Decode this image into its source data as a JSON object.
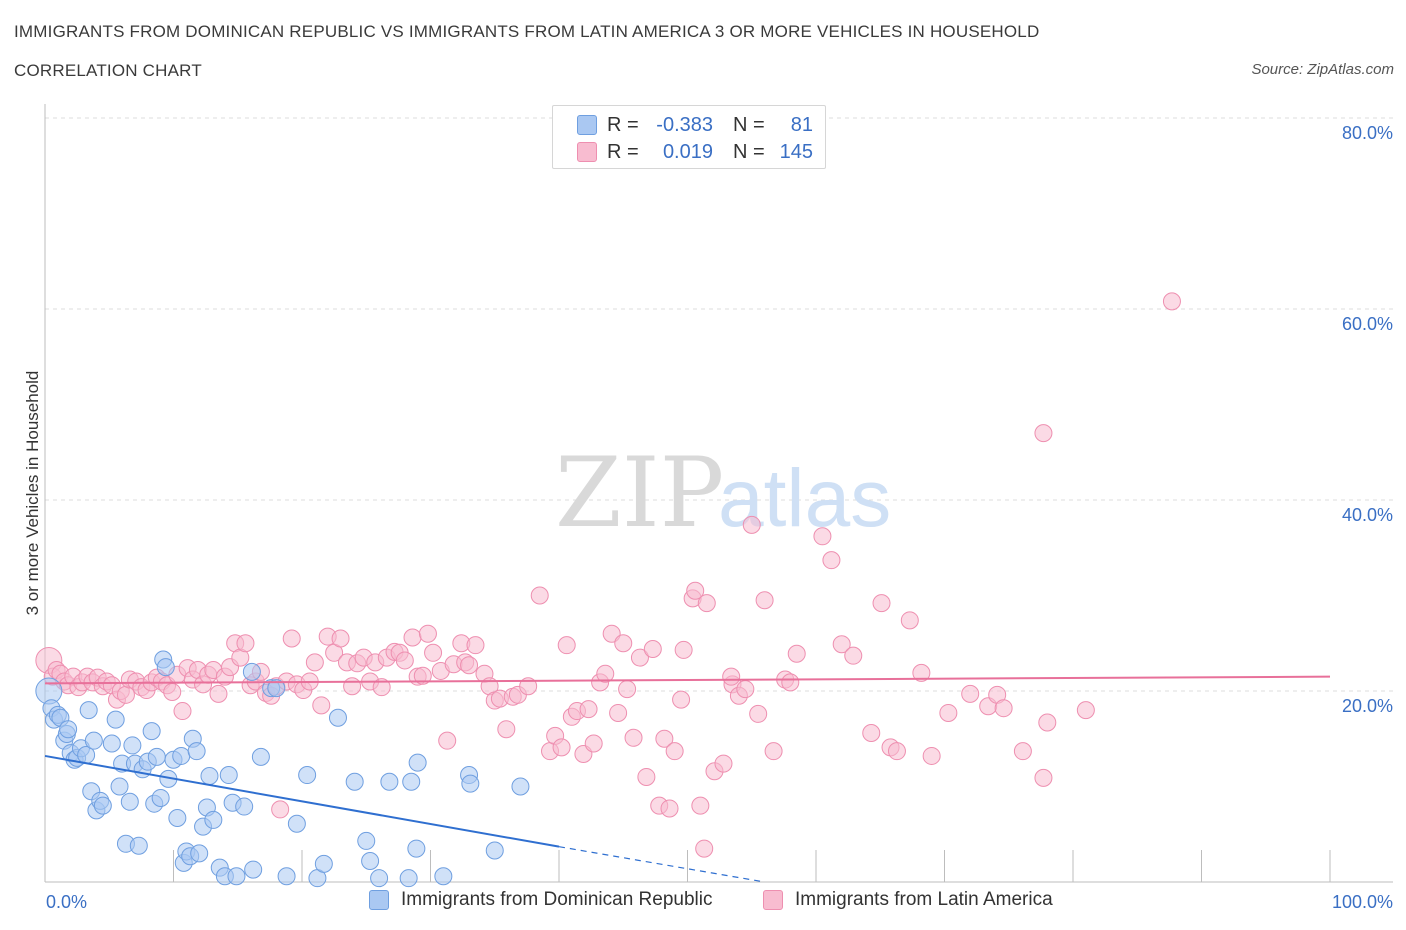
{
  "header": {
    "title": "IMMIGRANTS FROM DOMINICAN REPUBLIC VS IMMIGRANTS FROM LATIN AMERICA 3 OR MORE VEHICLES IN HOUSEHOLD",
    "subtitle": "CORRELATION CHART",
    "source": "Source: ZipAtlas.com"
  },
  "legend": {
    "rows": [
      {
        "r_label": "R =",
        "r_value": "-0.383",
        "n_label": "N =",
        "n_value": "81"
      },
      {
        "r_label": "R =",
        "r_value": "0.019",
        "n_label": "N =",
        "n_value": "145"
      }
    ]
  },
  "colors": {
    "blue_fill": "#aac8f2",
    "blue_stroke": "#6f9fe0",
    "blue_line": "#2f6fd0",
    "pink_fill": "#f8bcd0",
    "pink_stroke": "#ee8fb0",
    "pink_line": "#e8709a",
    "axis_label": "#3a6fc4",
    "grid": "#dcdcdc"
  },
  "chart_data": {
    "type": "scatter",
    "ylabel": "3 or more Vehicles in Household",
    "xlim": [
      0,
      100
    ],
    "ylim": [
      0,
      80
    ],
    "x_tick_labels": [
      "0.0%",
      "100.0%"
    ],
    "y_ticks": [
      20,
      40,
      60,
      80
    ],
    "y_tick_labels": [
      "20.0%",
      "40.0%",
      "60.0%",
      "80.0%"
    ],
    "grid": true,
    "watermark": {
      "zip": "ZIP",
      "atlas": "atlas"
    },
    "series": [
      {
        "name": "Immigrants from Dominican Republic",
        "color": "blue",
        "trend": {
          "x0": 0,
          "y0": 13.2,
          "x1": 40,
          "y1": 3.7,
          "dash_to_x": 56,
          "dash_to_y": 0
        },
        "points": [
          [
            0.3,
            20.0
          ],
          [
            0.5,
            18.2
          ],
          [
            0.7,
            17.0
          ],
          [
            1.0,
            17.5
          ],
          [
            1.2,
            17.2
          ],
          [
            1.5,
            14.8
          ],
          [
            1.7,
            15.5
          ],
          [
            1.8,
            16.0
          ],
          [
            2.0,
            13.5
          ],
          [
            2.3,
            12.8
          ],
          [
            2.5,
            13.0
          ],
          [
            2.8,
            14.0
          ],
          [
            3.2,
            13.3
          ],
          [
            3.4,
            18.0
          ],
          [
            3.6,
            9.5
          ],
          [
            3.8,
            14.8
          ],
          [
            4.0,
            7.5
          ],
          [
            4.3,
            8.5
          ],
          [
            4.5,
            8.0
          ],
          [
            5.2,
            14.5
          ],
          [
            5.5,
            17.0
          ],
          [
            5.8,
            10.0
          ],
          [
            6.0,
            12.4
          ],
          [
            6.3,
            4.0
          ],
          [
            6.6,
            8.4
          ],
          [
            6.8,
            14.3
          ],
          [
            7.0,
            12.4
          ],
          [
            7.3,
            3.8
          ],
          [
            7.6,
            11.8
          ],
          [
            8.0,
            12.6
          ],
          [
            8.3,
            15.8
          ],
          [
            8.5,
            8.2
          ],
          [
            8.7,
            13.1
          ],
          [
            9.0,
            8.8
          ],
          [
            9.2,
            23.3
          ],
          [
            9.4,
            22.5
          ],
          [
            9.6,
            10.8
          ],
          [
            10.0,
            12.8
          ],
          [
            10.3,
            6.7
          ],
          [
            10.6,
            13.2
          ],
          [
            10.8,
            2.0
          ],
          [
            11.0,
            3.2
          ],
          [
            11.3,
            2.7
          ],
          [
            11.5,
            15.0
          ],
          [
            11.8,
            13.7
          ],
          [
            12.0,
            3.0
          ],
          [
            12.3,
            5.8
          ],
          [
            12.6,
            7.8
          ],
          [
            12.8,
            11.1
          ],
          [
            13.1,
            6.5
          ],
          [
            13.6,
            1.5
          ],
          [
            14.0,
            0.6
          ],
          [
            14.3,
            11.2
          ],
          [
            14.6,
            8.3
          ],
          [
            14.9,
            0.6
          ],
          [
            15.5,
            7.9
          ],
          [
            16.2,
            1.3
          ],
          [
            16.8,
            13.1
          ],
          [
            16.1,
            22.0
          ],
          [
            17.6,
            20.3
          ],
          [
            18.0,
            20.3
          ],
          [
            18.8,
            0.6
          ],
          [
            19.6,
            6.1
          ],
          [
            20.4,
            11.2
          ],
          [
            21.2,
            0.4
          ],
          [
            21.7,
            1.9
          ],
          [
            22.8,
            17.2
          ],
          [
            24.1,
            10.5
          ],
          [
            25.0,
            4.3
          ],
          [
            25.3,
            2.2
          ],
          [
            26.0,
            0.4
          ],
          [
            26.8,
            10.5
          ],
          [
            28.3,
            0.4
          ],
          [
            28.5,
            10.5
          ],
          [
            29.0,
            12.5
          ],
          [
            28.9,
            3.5
          ],
          [
            31.0,
            0.6
          ],
          [
            33.0,
            11.2
          ],
          [
            33.1,
            10.3
          ],
          [
            35.0,
            3.3
          ],
          [
            37.0,
            10.0
          ]
        ]
      },
      {
        "name": "Immigrants from Latin America",
        "color": "pink",
        "trend": {
          "x0": 0,
          "y0": 20.8,
          "x1": 100,
          "y1": 21.5
        },
        "points": [
          [
            0.3,
            23.2
          ],
          [
            0.6,
            21.5
          ],
          [
            0.9,
            22.2
          ],
          [
            1.2,
            21.8
          ],
          [
            1.5,
            21.0
          ],
          [
            1.8,
            20.6
          ],
          [
            2.2,
            21.5
          ],
          [
            2.6,
            20.4
          ],
          [
            2.9,
            20.9
          ],
          [
            3.3,
            21.5
          ],
          [
            3.7,
            20.9
          ],
          [
            4.1,
            21.4
          ],
          [
            4.5,
            20.5
          ],
          [
            4.8,
            21.0
          ],
          [
            5.2,
            20.6
          ],
          [
            5.6,
            19.1
          ],
          [
            5.9,
            20.0
          ],
          [
            6.3,
            19.6
          ],
          [
            6.6,
            21.2
          ],
          [
            7.1,
            21.0
          ],
          [
            7.5,
            20.4
          ],
          [
            7.9,
            20.1
          ],
          [
            8.3,
            20.9
          ],
          [
            8.7,
            21.4
          ],
          [
            9.1,
            21.0
          ],
          [
            9.5,
            20.6
          ],
          [
            9.9,
            19.9
          ],
          [
            10.3,
            21.7
          ],
          [
            10.7,
            17.9
          ],
          [
            11.1,
            22.4
          ],
          [
            11.5,
            21.2
          ],
          [
            11.9,
            22.2
          ],
          [
            12.3,
            20.7
          ],
          [
            12.7,
            21.7
          ],
          [
            13.1,
            22.2
          ],
          [
            13.5,
            19.7
          ],
          [
            14.0,
            21.5
          ],
          [
            14.4,
            22.5
          ],
          [
            14.8,
            25.0
          ],
          [
            15.2,
            23.5
          ],
          [
            15.6,
            25.0
          ],
          [
            16.0,
            20.6
          ],
          [
            16.4,
            21.0
          ],
          [
            16.8,
            22.0
          ],
          [
            17.2,
            19.8
          ],
          [
            17.6,
            19.5
          ],
          [
            18.0,
            20.5
          ],
          [
            18.3,
            7.6
          ],
          [
            18.8,
            21.0
          ],
          [
            19.2,
            25.5
          ],
          [
            19.6,
            20.7
          ],
          [
            20.1,
            20.1
          ],
          [
            20.6,
            21.0
          ],
          [
            21.0,
            23.0
          ],
          [
            21.5,
            18.5
          ],
          [
            22.0,
            25.7
          ],
          [
            22.5,
            24.0
          ],
          [
            23.0,
            25.5
          ],
          [
            23.5,
            23.0
          ],
          [
            23.9,
            20.5
          ],
          [
            24.3,
            22.9
          ],
          [
            24.8,
            23.5
          ],
          [
            25.3,
            21.0
          ],
          [
            25.7,
            23.0
          ],
          [
            26.2,
            20.4
          ],
          [
            26.6,
            23.5
          ],
          [
            27.2,
            24.1
          ],
          [
            27.6,
            24.0
          ],
          [
            28.0,
            23.2
          ],
          [
            28.6,
            25.6
          ],
          [
            29.0,
            21.5
          ],
          [
            29.4,
            21.6
          ],
          [
            29.8,
            26.0
          ],
          [
            30.2,
            24.0
          ],
          [
            30.8,
            22.1
          ],
          [
            31.3,
            14.8
          ],
          [
            31.8,
            22.8
          ],
          [
            32.4,
            25.0
          ],
          [
            32.7,
            23.0
          ],
          [
            33.0,
            22.7
          ],
          [
            33.5,
            24.8
          ],
          [
            34.2,
            21.8
          ],
          [
            34.6,
            20.5
          ],
          [
            35.0,
            19.0
          ],
          [
            35.4,
            19.2
          ],
          [
            35.9,
            16.0
          ],
          [
            36.4,
            19.4
          ],
          [
            36.8,
            19.6
          ],
          [
            37.6,
            20.5
          ],
          [
            38.5,
            30.0
          ],
          [
            39.3,
            13.7
          ],
          [
            39.7,
            15.3
          ],
          [
            40.2,
            14.1
          ],
          [
            40.6,
            24.8
          ],
          [
            41.0,
            17.3
          ],
          [
            41.4,
            17.9
          ],
          [
            41.9,
            13.4
          ],
          [
            42.3,
            18.1
          ],
          [
            42.7,
            14.5
          ],
          [
            43.2,
            20.9
          ],
          [
            43.6,
            21.8
          ],
          [
            44.1,
            26.0
          ],
          [
            44.6,
            17.7
          ],
          [
            45.0,
            25.0
          ],
          [
            45.3,
            20.2
          ],
          [
            45.8,
            15.1
          ],
          [
            46.3,
            23.5
          ],
          [
            46.8,
            11.0
          ],
          [
            47.3,
            24.4
          ],
          [
            47.8,
            8.0
          ],
          [
            48.2,
            15.0
          ],
          [
            48.6,
            7.7
          ],
          [
            49.0,
            13.7
          ],
          [
            49.5,
            19.1
          ],
          [
            49.7,
            24.3
          ],
          [
            50.4,
            29.7
          ],
          [
            50.6,
            30.5
          ],
          [
            51.0,
            8.0
          ],
          [
            51.3,
            3.5
          ],
          [
            51.5,
            29.2
          ],
          [
            52.1,
            11.6
          ],
          [
            52.8,
            12.4
          ],
          [
            53.5,
            20.7
          ],
          [
            54.0,
            19.5
          ],
          [
            54.5,
            20.2
          ],
          [
            55.0,
            37.4
          ],
          [
            55.5,
            17.6
          ],
          [
            56.0,
            29.5
          ],
          [
            56.7,
            13.7
          ],
          [
            57.6,
            21.2
          ],
          [
            58.0,
            20.9
          ],
          [
            58.5,
            23.9
          ],
          [
            60.5,
            36.2
          ],
          [
            61.2,
            33.7
          ],
          [
            62.0,
            24.9
          ],
          [
            62.9,
            23.7
          ],
          [
            64.3,
            15.6
          ],
          [
            65.1,
            29.2
          ],
          [
            65.8,
            14.1
          ],
          [
            66.3,
            13.7
          ],
          [
            67.3,
            27.4
          ],
          [
            68.2,
            21.9
          ],
          [
            69.0,
            13.2
          ],
          [
            70.3,
            17.7
          ],
          [
            72.0,
            19.7
          ],
          [
            73.4,
            18.4
          ],
          [
            74.1,
            19.6
          ],
          [
            74.6,
            18.2
          ],
          [
            76.1,
            13.7
          ],
          [
            77.7,
            10.9
          ],
          [
            78.0,
            16.7
          ],
          [
            87.7,
            60.8
          ],
          [
            77.7,
            47.0
          ],
          [
            53.4,
            21.5
          ],
          [
            81.0,
            18.0
          ]
        ]
      }
    ]
  },
  "bottom_legend": [
    {
      "label": "Immigrants from Dominican Republic"
    },
    {
      "label": "Immigrants from Latin America"
    }
  ]
}
